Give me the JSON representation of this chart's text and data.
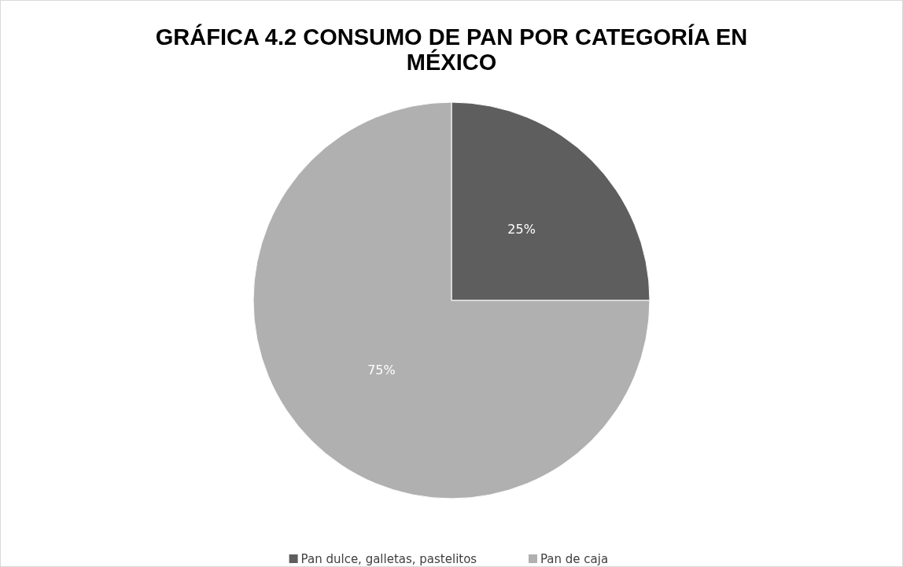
{
  "chart_data": {
    "type": "pie",
    "title": "GRÁFICA 4.2 CONSUMO DE PAN POR CATEGORÍA EN MÉXICO",
    "categories": [
      "Pan dulce, galletas, pastelitos",
      "Pan de caja"
    ],
    "values": [
      25,
      75
    ],
    "colors": [
      "#5e5e5e",
      "#b0b0b0"
    ],
    "value_labels": [
      "25%",
      "75%"
    ],
    "legend": "bottom"
  }
}
